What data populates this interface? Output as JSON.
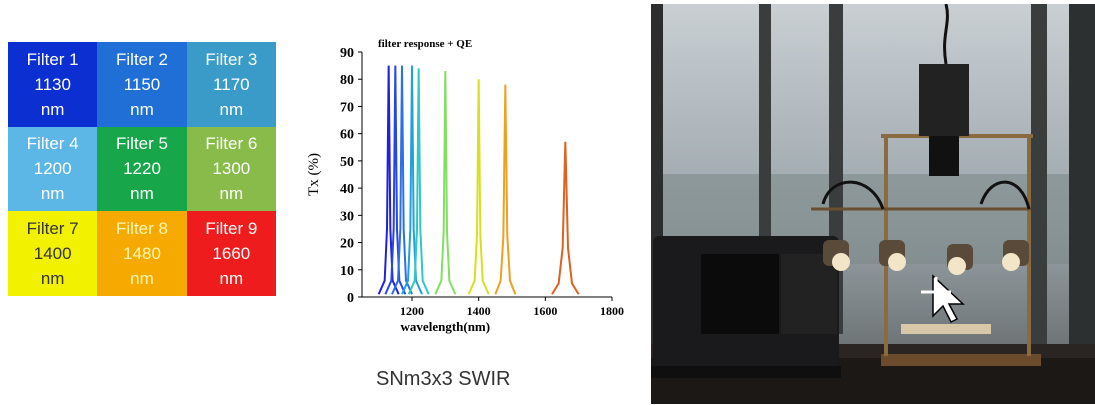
{
  "filter_grid": [
    {
      "label": "Filter 1",
      "wavelength": "1130",
      "unit": "nm",
      "color": "#0b2fd0",
      "text": "#ffffff"
    },
    {
      "label": "Filter 2",
      "wavelength": "1150",
      "unit": "nm",
      "color": "#1f6fd6",
      "text": "#ffffff"
    },
    {
      "label": "Filter 3",
      "wavelength": "1170",
      "unit": "nm",
      "color": "#3a9bc8",
      "text": "#ffffff"
    },
    {
      "label": "Filter 4",
      "wavelength": "1200",
      "unit": "nm",
      "color": "#5cb6e6",
      "text": "#ffffff"
    },
    {
      "label": "Filter 5",
      "wavelength": "1220",
      "unit": "nm",
      "color": "#17a64a",
      "text": "#ffffff"
    },
    {
      "label": "Filter 6",
      "wavelength": "1300",
      "unit": "nm",
      "color": "#88bb4a",
      "text": "#ffffff"
    },
    {
      "label": "Filter 7",
      "wavelength": "1400",
      "unit": "nm",
      "color": "#f2f200",
      "text": "#333333"
    },
    {
      "label": "Filter 8",
      "wavelength": "1480",
      "unit": "nm",
      "color": "#f6a900",
      "text": "#fff6b0"
    },
    {
      "label": "Filter 9",
      "wavelength": "1660",
      "unit": "nm",
      "color": "#ee1c1c",
      "text": "#ffffff"
    }
  ],
  "chart_data": {
    "type": "line",
    "title": "filter response + QE",
    "x_label": "wavelength(nm)",
    "y_label": "Tx (%)",
    "xlim": [
      1050,
      1800
    ],
    "xticks": [
      1200,
      1400,
      1600,
      1800
    ],
    "ylim": [
      0,
      90
    ],
    "yticks": [
      0,
      10,
      20,
      30,
      40,
      50,
      60,
      70,
      80,
      90
    ],
    "series": [
      {
        "color": "#2020e0",
        "x": [
          1100,
          1118,
          1125,
          1130,
          1135,
          1142,
          1160
        ],
        "values": [
          1,
          6,
          25,
          85,
          25,
          6,
          1
        ]
      },
      {
        "color": "#2846e6",
        "x": [
          1120,
          1138,
          1145,
          1150,
          1155,
          1162,
          1180
        ],
        "values": [
          1,
          6,
          25,
          85,
          25,
          6,
          1
        ]
      },
      {
        "color": "#2a70e8",
        "x": [
          1140,
          1158,
          1165,
          1170,
          1175,
          1182,
          1200
        ],
        "values": [
          1,
          6,
          25,
          85,
          25,
          6,
          1
        ]
      },
      {
        "color": "#20a0e0",
        "x": [
          1170,
          1188,
          1195,
          1200,
          1205,
          1212,
          1230
        ],
        "values": [
          1,
          6,
          25,
          85,
          25,
          6,
          1
        ]
      },
      {
        "color": "#30c8c0",
        "x": [
          1190,
          1208,
          1215,
          1220,
          1225,
          1232,
          1250
        ],
        "values": [
          1,
          6,
          25,
          84,
          25,
          6,
          1
        ]
      },
      {
        "color": "#80e060",
        "x": [
          1270,
          1288,
          1295,
          1300,
          1305,
          1312,
          1330
        ],
        "values": [
          1,
          6,
          24,
          83,
          24,
          6,
          1
        ]
      },
      {
        "color": "#d6e020",
        "x": [
          1370,
          1388,
          1395,
          1400,
          1405,
          1412,
          1430
        ],
        "values": [
          1,
          6,
          23,
          80,
          23,
          6,
          1
        ]
      },
      {
        "color": "#f0a020",
        "x": [
          1450,
          1466,
          1474,
          1480,
          1486,
          1494,
          1510
        ],
        "values": [
          1,
          6,
          22,
          78,
          22,
          6,
          1
        ]
      },
      {
        "color": "#e06020",
        "x": [
          1620,
          1640,
          1652,
          1660,
          1668,
          1680,
          1700
        ],
        "values": [
          1,
          5,
          18,
          57,
          18,
          5,
          1
        ]
      }
    ]
  },
  "caption": "SNm3x3 SWIR"
}
